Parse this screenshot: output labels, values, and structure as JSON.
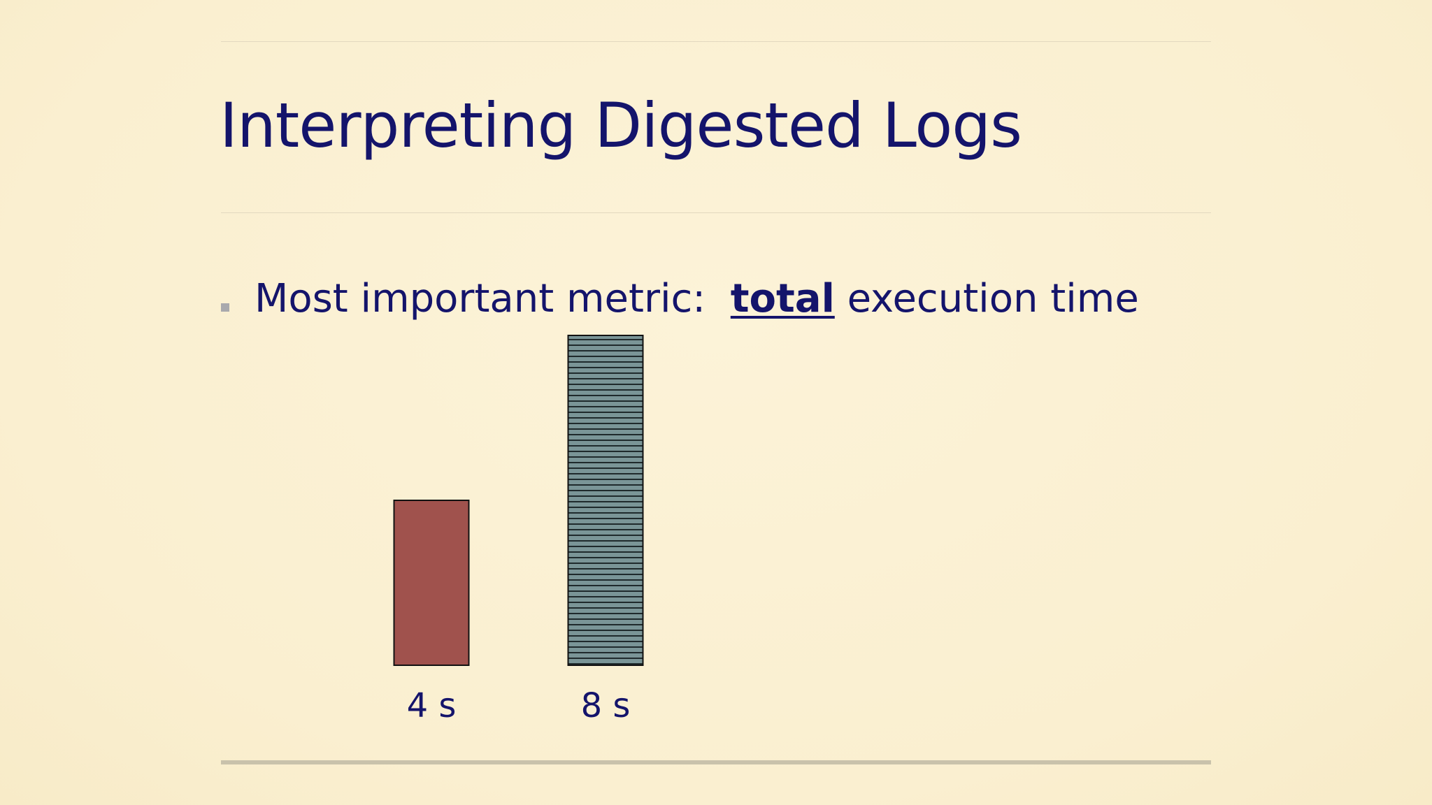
{
  "slide": {
    "title": "Interpreting Digested Logs",
    "bullet": {
      "prefix": "Most important metric:  ",
      "emphasis": "total",
      "suffix": " execution time"
    }
  },
  "chart_data": {
    "type": "bar",
    "title": "",
    "xlabel": "",
    "ylabel": "",
    "categories": [
      "4 s",
      "8 s"
    ],
    "values": [
      4,
      8
    ],
    "unit": "s",
    "ylim": [
      0,
      8
    ],
    "grid": false,
    "legend": "none",
    "bar_colors": [
      "#a0524d",
      "#7a9597"
    ],
    "bar_patterns": [
      "solid",
      "horizontal-stripes"
    ],
    "stripe_color": "#1f2a2c",
    "stroke_color": "#111111",
    "label_color": "#14146b"
  }
}
